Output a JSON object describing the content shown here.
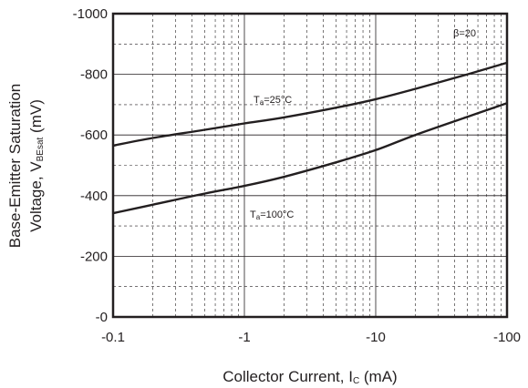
{
  "chart_data": {
    "type": "line",
    "x_scale": "log",
    "x_axis": {
      "range": [
        -0.1,
        -100
      ],
      "tick_labels": [
        "-0.1",
        "-1",
        "-10",
        "-100"
      ],
      "label": {
        "main": "Collector Current, I",
        "sub": "C",
        "unit": " (mA)"
      }
    },
    "y_axis": {
      "range": [
        0,
        -1000
      ],
      "tick_labels": [
        "-0",
        "-200",
        "-400",
        "-600",
        "-800",
        "-1000"
      ],
      "label": {
        "line1": "Base-Emitter Saturation",
        "line2_main": "Voltage, V",
        "line2_sub": "BEsat",
        "line2_unit": " (mV)"
      }
    },
    "grid": true,
    "condition": "β=20",
    "series": [
      {
        "name": "Ta=25°C",
        "label": {
          "main": "T",
          "sub": "a",
          "rest": "=25°C"
        },
        "points": [
          {
            "x": -0.1,
            "y": -565
          },
          {
            "x": -0.2,
            "y": -590
          },
          {
            "x": -0.5,
            "y": -617
          },
          {
            "x": -1,
            "y": -638
          },
          {
            "x": -2,
            "y": -658
          },
          {
            "x": -5,
            "y": -690
          },
          {
            "x": -10,
            "y": -718
          },
          {
            "x": -20,
            "y": -752
          },
          {
            "x": -50,
            "y": -800
          },
          {
            "x": -100,
            "y": -838
          }
        ]
      },
      {
        "name": "Ta=100°C",
        "label": {
          "main": "T",
          "sub": "a",
          "rest": "=100°C"
        },
        "points": [
          {
            "x": -0.1,
            "y": -342
          },
          {
            "x": -0.2,
            "y": -370
          },
          {
            "x": -0.5,
            "y": -407
          },
          {
            "x": -1,
            "y": -432
          },
          {
            "x": -2,
            "y": -462
          },
          {
            "x": -5,
            "y": -510
          },
          {
            "x": -10,
            "y": -550
          },
          {
            "x": -20,
            "y": -600
          },
          {
            "x": -50,
            "y": -660
          },
          {
            "x": -100,
            "y": -705
          }
        ]
      }
    ]
  }
}
